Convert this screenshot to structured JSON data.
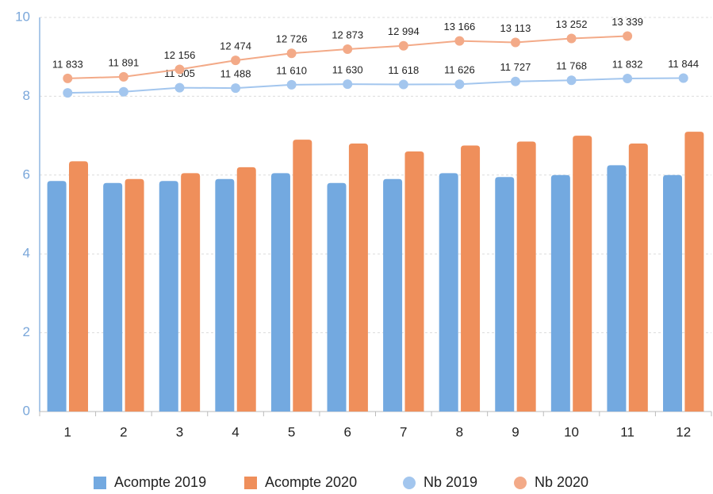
{
  "chart_data": {
    "type": "bar",
    "categories": [
      "1",
      "2",
      "3",
      "4",
      "5",
      "6",
      "7",
      "8",
      "9",
      "10",
      "11",
      "12"
    ],
    "series": [
      {
        "name": "Acompte 2019",
        "type": "bar",
        "color": "#73a9e0",
        "values": [
          5.85,
          5.8,
          5.85,
          5.9,
          6.05,
          5.8,
          5.9,
          6.05,
          5.95,
          6.0,
          6.25,
          6.0
        ]
      },
      {
        "name": "Acompte 2020",
        "type": "bar",
        "color": "#ef8f5b",
        "values": [
          6.35,
          5.9,
          6.05,
          6.2,
          6.9,
          6.8,
          6.6,
          6.75,
          6.85,
          7.0,
          6.8,
          7.1
        ]
      },
      {
        "name": "Nb 2019",
        "type": "line",
        "axis": "y2",
        "color": "#a3c6ee",
        "values": [
          11320,
          11360,
          11505,
          11488,
          11610,
          11630,
          11618,
          11626,
          11727,
          11768,
          11832,
          11844
        ],
        "value_labels": [
          null,
          null,
          "11 505",
          "11 488",
          "11 610",
          "11 630",
          "11 618",
          "11 626",
          "11 727",
          "11 768",
          "11 832",
          "11 844"
        ]
      },
      {
        "name": "Nb 2020",
        "type": "line",
        "axis": "y2",
        "color": "#f3aa88",
        "values": [
          11833,
          11891,
          12156,
          12474,
          12726,
          12873,
          12994,
          13166,
          13113,
          13252,
          13339,
          null
        ],
        "value_labels": [
          "11 833",
          "11 891",
          "12 156",
          "12 474",
          "12 726",
          "12 873",
          "12 994",
          "13 166",
          "13 113",
          "13 252",
          "13 339",
          null
        ]
      }
    ],
    "ylim": [
      0,
      10
    ],
    "yticks": [
      0,
      2,
      4,
      6,
      8,
      10
    ],
    "y2lim": [
      0,
      14000
    ],
    "grid": true,
    "legend": "bottom"
  }
}
